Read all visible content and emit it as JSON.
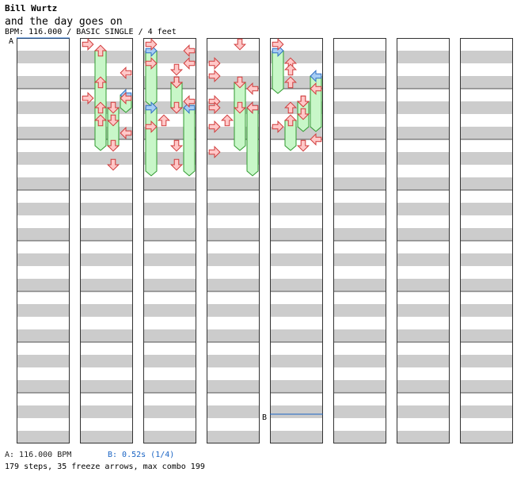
{
  "header": {
    "title": "Bill Wurtz",
    "song": "and the day goes on",
    "info": "BPM: 116.000 / BASIC SINGLE / 4 feet"
  },
  "markers": {
    "a": "A",
    "b": "B"
  },
  "footer": {
    "bpm_a": "A: 116.000 BPM",
    "stop_b": "B: 0.52s (1/4)",
    "stats": "179 steps, 35 freeze arrows, max combo 199"
  },
  "colors": {
    "stripe": "#cccccc",
    "arrow_fill": "#ffc8c8",
    "arrow_stroke": "#d03a3a",
    "blue_fill": "#a6cdf4",
    "blue_stroke": "#2f6fc4",
    "freeze_fill": "#c8f7c8",
    "freeze_stroke": "#2f9a2f",
    "marker_line": "#1a64c4"
  },
  "chart_data": {
    "type": "table",
    "chart": "DDR step chart",
    "bpm": 116.0,
    "stop_seconds": 0.52,
    "lanes": [
      "left",
      "down",
      "up",
      "right"
    ],
    "columns": 8,
    "measures_per_column": 8,
    "steps": [
      [
        1,
        0,
        0
      ],
      [
        1,
        2.25,
        3
      ],
      [
        1,
        4.25,
        0
      ],
      [
        1,
        4.25,
        3
      ],
      [
        1,
        6,
        1
      ],
      [
        1,
        6,
        2
      ],
      [
        1,
        7.0,
        3
      ],
      [
        1,
        8.0,
        2
      ],
      [
        1,
        9.5,
        2
      ],
      [
        2,
        0,
        0
      ],
      [
        2,
        0.5,
        3
      ],
      [
        2,
        1.5,
        0
      ],
      [
        2,
        1.5,
        3
      ],
      [
        2,
        2,
        2
      ],
      [
        2,
        3,
        2
      ],
      [
        2,
        4.5,
        3
      ],
      [
        2,
        5,
        2
      ],
      [
        2,
        6,
        1
      ],
      [
        2,
        6.5,
        0
      ],
      [
        2,
        8,
        2
      ],
      [
        2,
        9.5,
        2
      ],
      [
        3,
        0,
        2
      ],
      [
        3,
        1.5,
        0
      ],
      [
        3,
        2.5,
        0
      ],
      [
        3,
        3.5,
        3
      ],
      [
        3,
        4.5,
        0
      ],
      [
        3,
        5,
        0
      ],
      [
        3,
        5,
        3
      ],
      [
        3,
        6,
        1
      ],
      [
        3,
        6.5,
        0
      ],
      [
        3,
        8.5,
        0
      ],
      [
        4,
        0,
        0
      ],
      [
        4,
        1.5,
        1
      ],
      [
        4,
        2,
        1
      ],
      [
        4,
        3,
        1
      ],
      [
        4,
        3.5,
        3
      ],
      [
        4,
        4.5,
        2
      ],
      [
        4,
        5,
        1
      ],
      [
        4,
        5.5,
        2
      ],
      [
        4,
        6.5,
        0
      ],
      [
        4,
        7.5,
        3
      ],
      [
        4,
        8,
        2
      ]
    ],
    "freezes": [
      [
        1,
        0.5,
        1,
        1.5
      ],
      [
        1,
        3,
        1,
        1.5
      ],
      [
        1,
        4,
        3,
        0.5
      ],
      [
        1,
        5,
        1,
        1.5
      ],
      [
        1,
        5,
        2,
        1.5
      ],
      [
        2,
        0.5,
        0,
        2
      ],
      [
        2,
        3,
        2,
        1
      ],
      [
        2,
        5,
        0,
        2.5
      ],
      [
        2,
        5,
        3,
        2.5
      ],
      [
        3,
        3,
        2,
        1
      ],
      [
        3,
        5,
        2,
        1.5
      ],
      [
        3,
        5,
        3,
        2.5
      ],
      [
        4,
        0.5,
        0,
        1.5
      ],
      [
        4,
        2.5,
        3,
        2
      ],
      [
        4,
        4.5,
        2,
        1
      ],
      [
        4,
        6,
        1,
        1
      ]
    ]
  }
}
